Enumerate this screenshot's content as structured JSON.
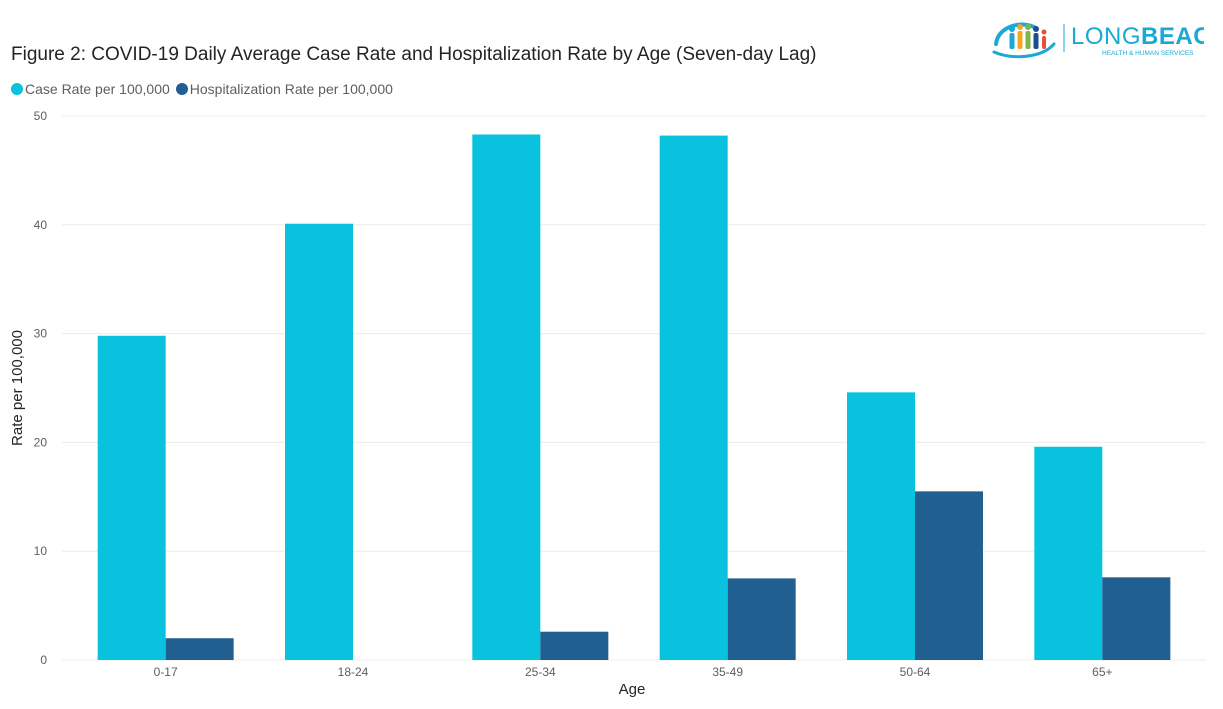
{
  "figure": {
    "title": "Figure 2: COVID-19 Daily Average Case Rate and Hospitalization Rate by Age (Seven-day Lag)"
  },
  "logo": {
    "text_main": "LONG",
    "text_accent": "BEACH",
    "subtitle": "HEALTH & HUMAN SERVICES",
    "colors": [
      "#1aa9d6",
      "#f5a623",
      "#7ab648",
      "#1f4e8c",
      "#e94e3c"
    ]
  },
  "legend": {
    "items": [
      {
        "label": "Case Rate per 100,000",
        "color": "#08c2de"
      },
      {
        "label": "Hospitalization Rate per 100,000",
        "color": "#225f91"
      }
    ]
  },
  "chart_data": {
    "type": "bar",
    "title": "Figure 2: COVID-19 Daily Average Case Rate and Hospitalization Rate by Age (Seven-day Lag)",
    "xlabel": "Age",
    "ylabel": "Rate per 100,000",
    "categories": [
      "0-17",
      "18-24",
      "25-34",
      "35-49",
      "50-64",
      "65+"
    ],
    "series": [
      {
        "name": "Case Rate per 100,000",
        "color": "#08c2de",
        "values": [
          29.8,
          40.1,
          48.3,
          48.2,
          24.6,
          19.6
        ]
      },
      {
        "name": "Hospitalization Rate per 100,000",
        "color": "#225f91",
        "values": [
          2.0,
          0,
          2.6,
          7.5,
          15.5,
          7.6
        ]
      }
    ],
    "ylim": [
      0,
      50
    ],
    "yticks": [
      0,
      10,
      20,
      30,
      40,
      50
    ],
    "grid": true,
    "legend_position": "top-left"
  }
}
